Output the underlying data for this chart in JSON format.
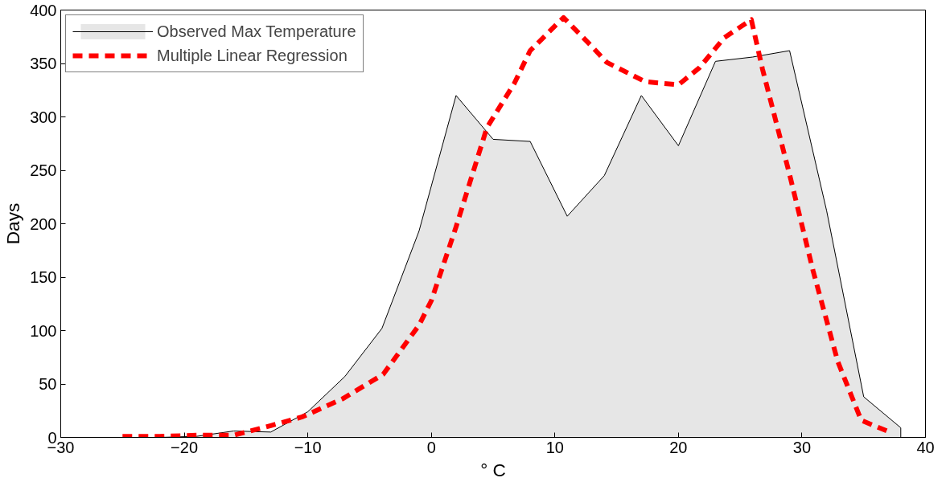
{
  "chart_data": {
    "type": "area",
    "xlabel": "° C",
    "ylabel": "Days",
    "xlim": [
      -30,
      40
    ],
    "ylim": [
      0,
      400
    ],
    "xticks": [
      -30,
      -20,
      -10,
      0,
      10,
      20,
      30,
      40
    ],
    "yticks": [
      0,
      50,
      100,
      150,
      200,
      250,
      300,
      350,
      400
    ],
    "grid": false,
    "legend": "top left",
    "series": [
      {
        "name": "Observed Max Temperature",
        "color": "#e6e6e6",
        "x": [
          -30,
          -28,
          -25,
          -22,
          -19,
          -16,
          -13,
          -10,
          -7,
          -4,
          -1,
          2,
          5,
          8,
          11,
          14,
          17,
          20,
          23,
          26,
          29,
          32,
          35,
          38,
          38
        ],
        "values": [
          0,
          0,
          0,
          0,
          1,
          6,
          5,
          24,
          57,
          102,
          193,
          320,
          279,
          277,
          207,
          245,
          320,
          273,
          352,
          356,
          362,
          212,
          38,
          9,
          0
        ]
      },
      {
        "name": "Multiple Linear Regression",
        "type": "line",
        "line_style": "dashed",
        "color": "#ff0000",
        "x": [
          -25,
          -22,
          -19,
          -16,
          -13,
          -10.5,
          -7.2,
          -3.9,
          -1,
          0,
          2,
          4.5,
          6.7,
          8,
          10.7,
          12.9,
          14.2,
          17.3,
          20,
          21.7,
          23.7,
          25.9,
          26.8,
          29,
          30.9,
          32.9,
          34.8,
          37.3
        ],
        "values": [
          1,
          1,
          2,
          2,
          11,
          19,
          36,
          59,
          105,
          128,
          197,
          290,
          331,
          362,
          393,
          367,
          351,
          333,
          330,
          346,
          374,
          391,
          345,
          246,
          156,
          71,
          16,
          4
        ]
      }
    ]
  }
}
